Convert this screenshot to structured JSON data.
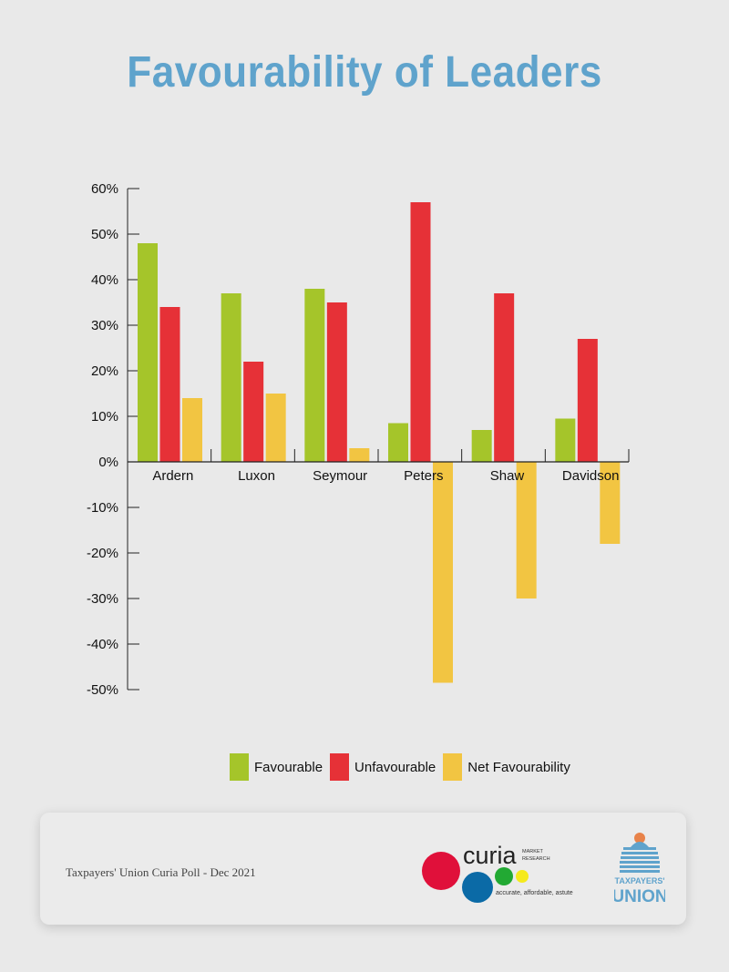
{
  "title": "Favourability of Leaders",
  "chart_data": {
    "type": "bar",
    "title": "Favourability of Leaders",
    "categories": [
      "Ardern",
      "Luxon",
      "Seymour",
      "Peters",
      "Shaw",
      "Davidson"
    ],
    "series": [
      {
        "name": "Favourable",
        "color": "#a5c52a",
        "values": [
          48,
          37,
          38,
          8.5,
          7,
          9.5
        ]
      },
      {
        "name": "Unfavourable",
        "color": "#e63137",
        "values": [
          34,
          22,
          35,
          57,
          37,
          27
        ]
      },
      {
        "name": "Net Favourability",
        "color": "#f2c542",
        "values": [
          14,
          15,
          3,
          -48.5,
          -30,
          -18
        ]
      }
    ],
    "ylim": [
      -50,
      60
    ],
    "yticks": [
      60,
      50,
      40,
      30,
      20,
      10,
      0,
      -10,
      -20,
      -30,
      -40,
      -50
    ],
    "ytick_labels": [
      "60%",
      "50%",
      "40%",
      "30%",
      "20%",
      "10%",
      "0%",
      "-10%",
      "-20%",
      "-30%",
      "-40%",
      "-50%"
    ],
    "xlabel": "",
    "ylabel": "",
    "legend": "bottom"
  },
  "legend": {
    "favourable": "Favourable",
    "unfavourable": "Unfavourable",
    "net": "Net Favourability"
  },
  "footer": {
    "source": "Taxpayers' Union Curia Poll - Dec 2021",
    "curia_name": "curia",
    "curia_market": "MARKET",
    "curia_research": "RESEARCH",
    "curia_tagline": "accurate, affordable, astute",
    "tu_line1": "TAXPAYERS'",
    "tu_line2": "UNION"
  },
  "colors": {
    "title": "#5fa3cc",
    "favourable": "#a5c52a",
    "unfavourable": "#e63137",
    "net": "#f2c542"
  }
}
